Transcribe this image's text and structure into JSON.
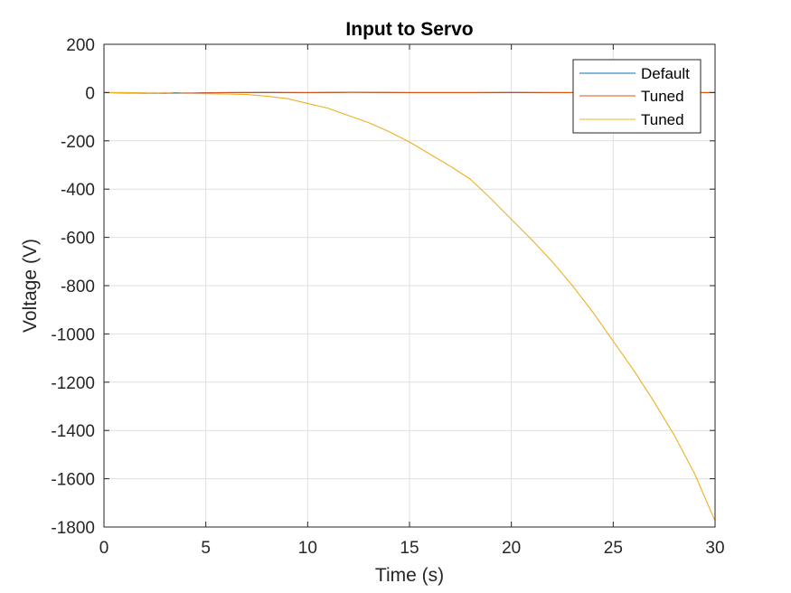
{
  "chart_data": {
    "type": "line",
    "title": "Input to Servo",
    "xlabel": "Time (s)",
    "ylabel": "Voltage (V)",
    "xlim": [
      0,
      30
    ],
    "ylim": [
      -1800,
      200
    ],
    "xticks": [
      0,
      5,
      10,
      15,
      20,
      25,
      30
    ],
    "yticks": [
      200,
      0,
      -200,
      -400,
      -600,
      -800,
      -1000,
      -1200,
      -1400,
      -1600,
      -1800
    ],
    "grid": true,
    "legend": {
      "position": "top-right",
      "entries": [
        "Default",
        "Tuned",
        "Tuned"
      ]
    },
    "series": [
      {
        "name": "Default",
        "color": "#0072BD",
        "x": [
          0,
          1,
          2,
          2.5,
          3,
          3.5,
          4,
          4.5,
          5,
          6,
          8,
          10,
          12,
          15,
          18,
          20,
          22,
          25,
          28,
          30
        ],
        "y": [
          0,
          -1,
          -3,
          -2,
          -4,
          -1,
          -3,
          -2,
          -1,
          0,
          0,
          0,
          1,
          0,
          0,
          0,
          0,
          0,
          0,
          0
        ]
      },
      {
        "name": "Tuned",
        "color": "#D95319",
        "x": [
          0,
          1,
          2,
          2.5,
          3,
          3.5,
          4,
          4.5,
          5,
          6,
          8,
          10,
          12,
          15,
          18,
          20,
          22,
          25,
          28,
          30
        ],
        "y": [
          0,
          -1,
          -2,
          -3,
          -2,
          -4,
          -2,
          -3,
          -1,
          0,
          1,
          0,
          1,
          0,
          0,
          1,
          0,
          0,
          0,
          0
        ]
      },
      {
        "name": "Tuned",
        "color": "#EDB120",
        "x": [
          0,
          1,
          2,
          3,
          4,
          5,
          6,
          7,
          8,
          9,
          10,
          11,
          12,
          13,
          14,
          15,
          16,
          17,
          18,
          19,
          20,
          21,
          22,
          23,
          24,
          25,
          26,
          27,
          28,
          29,
          30
        ],
        "y": [
          0,
          0,
          -2,
          -3,
          -4,
          -5,
          -6,
          -8,
          -15,
          -25,
          -45,
          -65,
          -95,
          -125,
          -162,
          -205,
          -255,
          -305,
          -360,
          -440,
          -525,
          -610,
          -700,
          -800,
          -910,
          -1030,
          -1150,
          -1280,
          -1420,
          -1580,
          -1775
        ]
      }
    ]
  }
}
